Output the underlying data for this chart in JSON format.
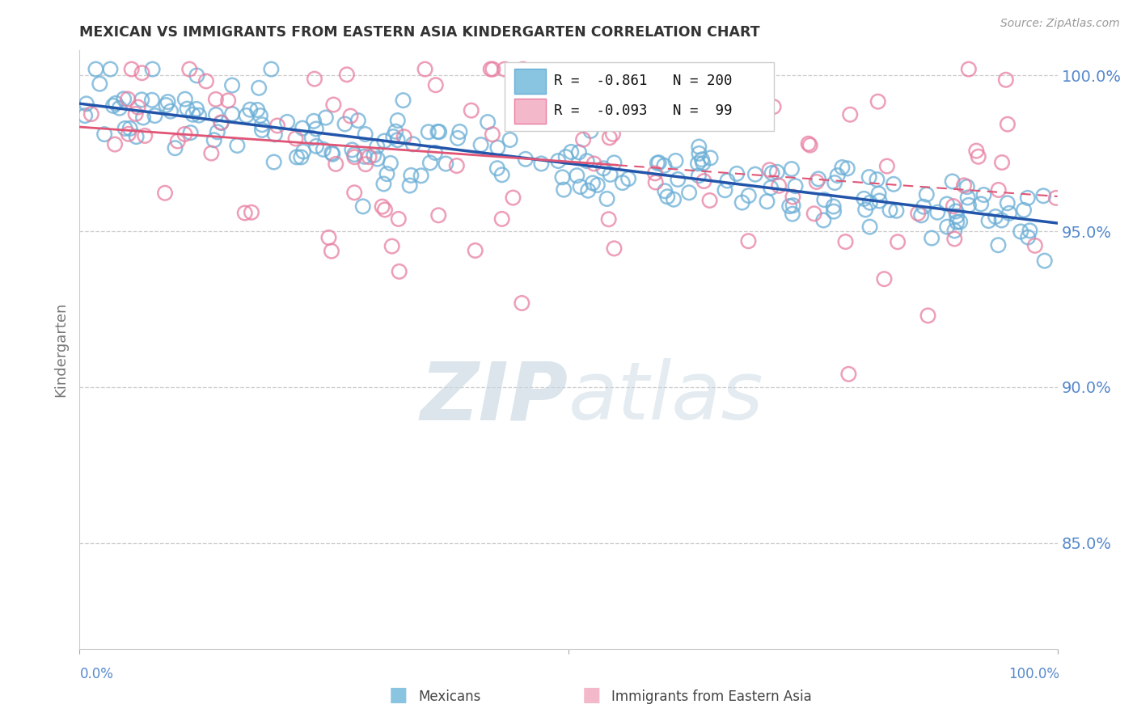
{
  "title": "MEXICAN VS IMMIGRANTS FROM EASTERN ASIA KINDERGARTEN CORRELATION CHART",
  "source_text": "Source: ZipAtlas.com",
  "ylabel": "Kindergarten",
  "legend_labels": [
    "Mexicans",
    "Immigrants from Eastern Asia"
  ],
  "blue_color": "#89c4e0",
  "blue_edge_color": "#6aaed6",
  "pink_color": "#f4b8cb",
  "pink_edge_color": "#e87fa0",
  "blue_line_color": "#2255aa",
  "pink_line_color": "#e05575",
  "pink_line_dash": "#e8a0b0",
  "R_blue": -0.861,
  "N_blue": 200,
  "R_pink": -0.093,
  "N_pink": 99,
  "x_min": 0.0,
  "x_max": 1.0,
  "y_min": 0.816,
  "y_max": 1.008,
  "y_ticks": [
    0.85,
    0.9,
    0.95,
    1.0
  ],
  "y_tick_labels": [
    "85.0%",
    "90.0%",
    "95.0%",
    "100.0%"
  ],
  "grid_color": "#cccccc",
  "background_color": "#ffffff",
  "watermark_zip": "ZIP",
  "watermark_atlas": "atlas",
  "watermark_color": "#d0dce8",
  "title_color": "#333333",
  "axis_label_color": "#5588cc",
  "source_color": "#999999",
  "seed_blue": 42,
  "seed_pink": 77
}
